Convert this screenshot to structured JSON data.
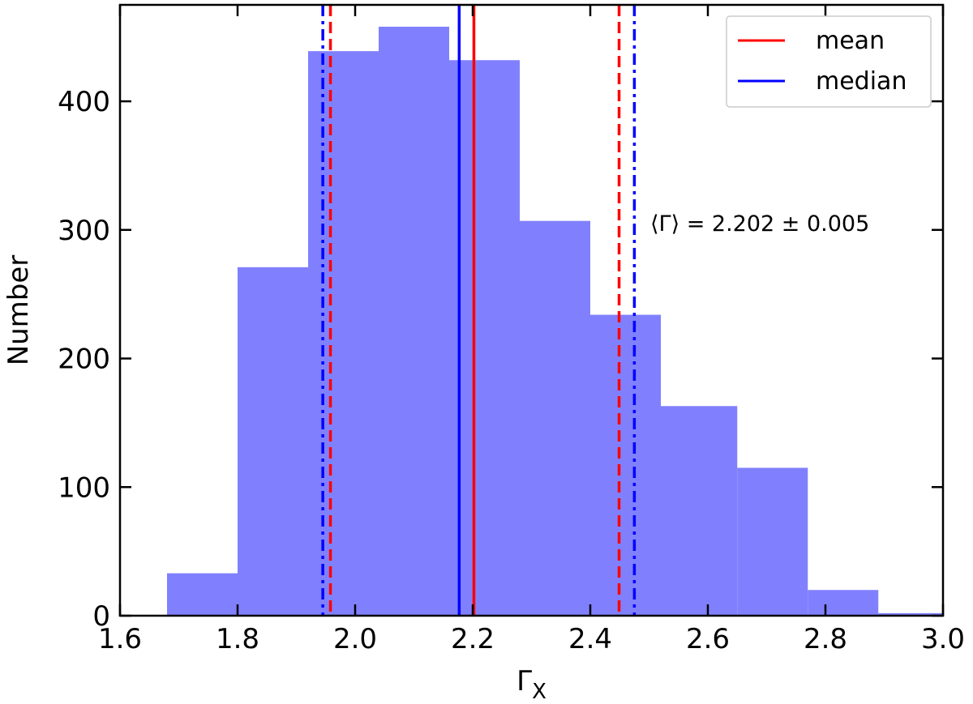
{
  "chart_data": {
    "type": "bar",
    "bin_edges": [
      1.68,
      1.8,
      1.92,
      2.04,
      2.16,
      2.28,
      2.4,
      2.52,
      2.65,
      2.77,
      2.89,
      3.0
    ],
    "values": [
      33,
      271,
      439,
      458,
      432,
      307,
      234,
      163,
      115,
      20,
      2
    ],
    "bar_color": "#8080ff",
    "xlim": [
      1.6,
      3.0
    ],
    "ylim": [
      0,
      475
    ],
    "xticks": [
      1.6,
      1.8,
      2.0,
      2.2,
      2.4,
      2.6,
      2.8,
      3.0
    ],
    "xtick_labels": [
      "1.6",
      "1.8",
      "2.0",
      "2.2",
      "2.4",
      "2.6",
      "2.8",
      "3.0"
    ],
    "yticks": [
      0,
      100,
      200,
      300,
      400
    ],
    "ytick_labels": [
      "0",
      "100",
      "200",
      "300",
      "400"
    ],
    "xlabel_base": "Γ",
    "xlabel_sub": "X",
    "ylabel": "Number",
    "vlines": [
      {
        "x": 1.958,
        "color": "#ff0000",
        "style": "dashed"
      },
      {
        "x": 2.202,
        "color": "#ff0000",
        "style": "solid"
      },
      {
        "x": 2.449,
        "color": "#ff0000",
        "style": "dashed"
      },
      {
        "x": 1.945,
        "color": "#0000ff",
        "style": "dashdot"
      },
      {
        "x": 2.177,
        "color": "#0000ff",
        "style": "solid"
      },
      {
        "x": 2.475,
        "color": "#0000ff",
        "style": "dashdot"
      }
    ],
    "legend": {
      "position": "top-right",
      "entries": [
        {
          "label": "mean",
          "color": "#ff0000"
        },
        {
          "label": "median",
          "color": "#0000ff"
        }
      ]
    },
    "annotation": "⟨Γ⟩ = 2.202 ± 0.005",
    "grid": false
  }
}
